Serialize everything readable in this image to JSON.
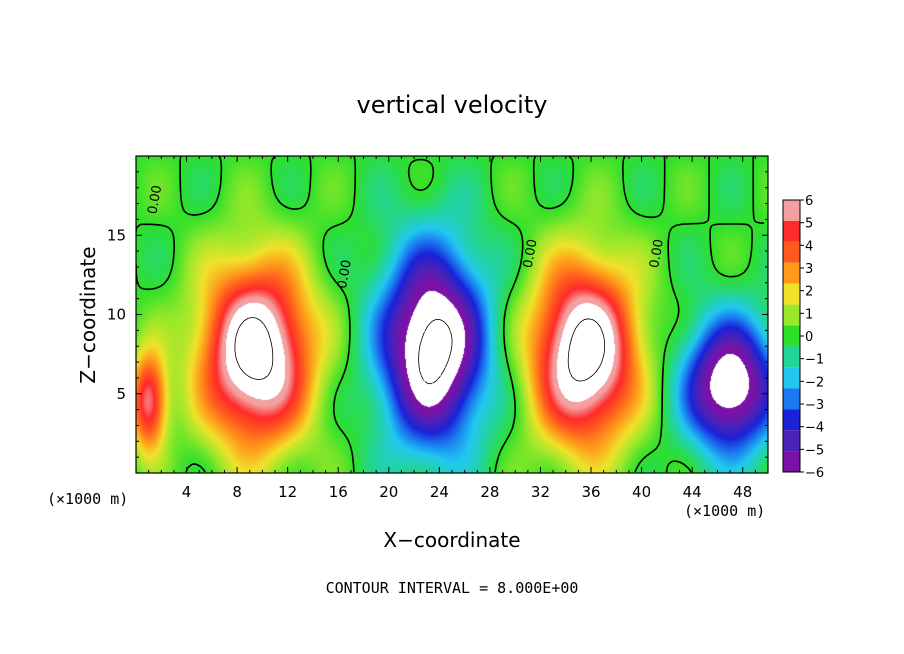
{
  "chart_data": {
    "type": "heatmap",
    "title": "vertical velocity",
    "xlabel": "X−coordinate",
    "ylabel": "Z−coordinate",
    "x_unit_left": "(×1000 m)",
    "x_unit_right": "(×1000 m)",
    "footer": "CONTOUR INTERVAL = 8.000E+00",
    "xlim": [
      0,
      50
    ],
    "ylim": [
      0,
      20
    ],
    "x_ticks": [
      4,
      8,
      12,
      16,
      20,
      24,
      28,
      32,
      36,
      40,
      44,
      48
    ],
    "x_tick_labels": [
      "4",
      "8",
      "12",
      "16",
      "20",
      "24",
      "28",
      "32",
      "36",
      "40",
      "44",
      "48"
    ],
    "y_ticks": [
      5,
      10,
      15
    ],
    "y_tick_labels": [
      "5",
      "10",
      "15"
    ],
    "colorbar": {
      "levels": [
        6,
        5,
        4,
        3,
        2,
        1,
        0,
        -1,
        -2,
        -3,
        -4,
        -5,
        -6
      ],
      "labels": [
        "6",
        "5",
        "4",
        "3",
        "2",
        "1",
        "0",
        "−1",
        "−2",
        "−3",
        "−4",
        "−5",
        "−6"
      ],
      "colors": [
        "#f4a0a0",
        "#ff2a2a",
        "#ff5a1e",
        "#ff9a1a",
        "#f0e22a",
        "#9be82a",
        "#2ee02a",
        "#22d49a",
        "#22c8f0",
        "#1a78f0",
        "#1a22d8",
        "#4a22b8",
        "#7a12a8"
      ]
    },
    "contour_labels": [
      "0.00",
      "0.00",
      "0.00",
      "0.00",
      "0.00"
    ],
    "features": [
      {
        "kind": "updraft",
        "x": 9.5,
        "z": 7.5,
        "sx": 4.2,
        "sz": 5.5,
        "amp": 9
      },
      {
        "kind": "updraft",
        "x": 35.5,
        "z": 7.5,
        "sx": 4.0,
        "sz": 5.5,
        "amp": 9
      },
      {
        "kind": "updraft",
        "x": 1.0,
        "z": 4.5,
        "sx": 1.4,
        "sz": 3.0,
        "amp": 6
      },
      {
        "kind": "downdraft",
        "x": 23.5,
        "z": 8.0,
        "sx": 4.0,
        "sz": 6.0,
        "amp": -9
      },
      {
        "kind": "downdraft",
        "x": 47.0,
        "z": 5.5,
        "sx": 3.5,
        "sz": 4.0,
        "amp": -8
      }
    ],
    "grid": false,
    "legend": "right"
  }
}
